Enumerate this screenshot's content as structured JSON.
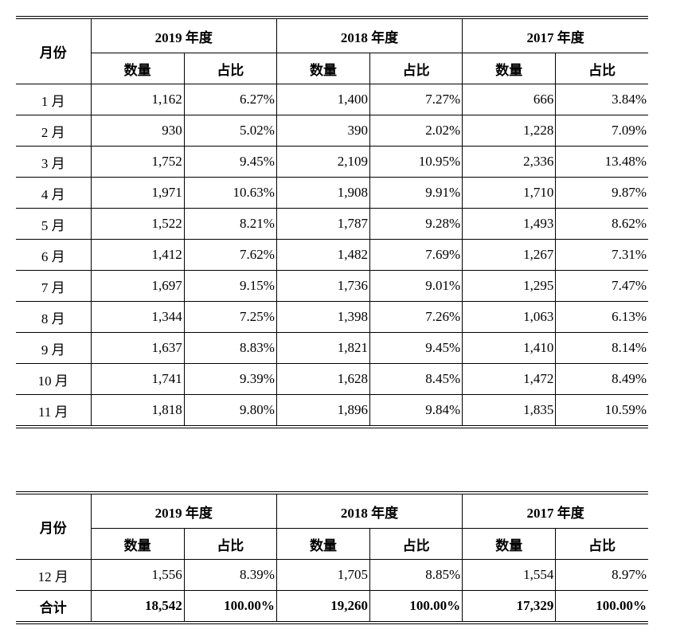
{
  "month_col_label": "月份",
  "years": [
    "2019 年度",
    "2018 年度",
    "2017 年度"
  ],
  "sub_labels": {
    "qty": "数量",
    "pct": "占比"
  },
  "rows_main": [
    {
      "m": "1 月",
      "v": [
        "1,162",
        "6.27%",
        "1,400",
        "7.27%",
        "666",
        "3.84%"
      ]
    },
    {
      "m": "2 月",
      "v": [
        "930",
        "5.02%",
        "390",
        "2.02%",
        "1,228",
        "7.09%"
      ]
    },
    {
      "m": "3 月",
      "v": [
        "1,752",
        "9.45%",
        "2,109",
        "10.95%",
        "2,336",
        "13.48%"
      ]
    },
    {
      "m": "4 月",
      "v": [
        "1,971",
        "10.63%",
        "1,908",
        "9.91%",
        "1,710",
        "9.87%"
      ]
    },
    {
      "m": "5 月",
      "v": [
        "1,522",
        "8.21%",
        "1,787",
        "9.28%",
        "1,493",
        "8.62%"
      ]
    },
    {
      "m": "6 月",
      "v": [
        "1,412",
        "7.62%",
        "1,482",
        "7.69%",
        "1,267",
        "7.31%"
      ]
    },
    {
      "m": "7 月",
      "v": [
        "1,697",
        "9.15%",
        "1,736",
        "9.01%",
        "1,295",
        "7.47%"
      ]
    },
    {
      "m": "8 月",
      "v": [
        "1,344",
        "7.25%",
        "1,398",
        "7.26%",
        "1,063",
        "6.13%"
      ]
    },
    {
      "m": "9 月",
      "v": [
        "1,637",
        "8.83%",
        "1,821",
        "9.45%",
        "1,410",
        "8.14%"
      ]
    },
    {
      "m": "10 月",
      "v": [
        "1,741",
        "9.39%",
        "1,628",
        "8.45%",
        "1,472",
        "8.49%"
      ]
    },
    {
      "m": "11 月",
      "v": [
        "1,818",
        "9.80%",
        "1,896",
        "9.84%",
        "1,835",
        "10.59%"
      ]
    }
  ],
  "rows_second": [
    {
      "m": "12 月",
      "v": [
        "1,556",
        "8.39%",
        "1,705",
        "8.85%",
        "1,554",
        "8.97%"
      ],
      "bold": false
    },
    {
      "m": "合计",
      "v": [
        "18,542",
        "100.00%",
        "19,260",
        "100.00%",
        "17,329",
        "100.00%"
      ],
      "bold": true
    }
  ]
}
